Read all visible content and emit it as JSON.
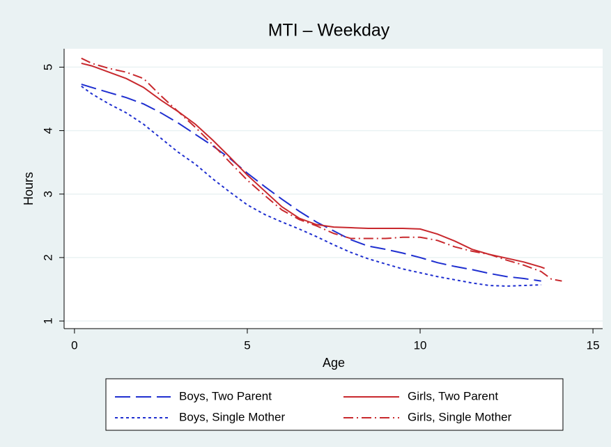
{
  "chart_data": {
    "type": "line",
    "title": "MTI – Weekday",
    "xlabel": "Age",
    "ylabel": "Hours",
    "xlim": [
      -0.3,
      15.28
    ],
    "ylim": [
      0.88,
      5.29
    ],
    "xticks": [
      0,
      5,
      10,
      15
    ],
    "yticks": [
      1,
      2,
      3,
      4,
      5
    ],
    "grid": true,
    "series": [
      {
        "name": "Boys, Two Parent",
        "color": "#1f2fd0",
        "dash": "long",
        "x": [
          0.2,
          0.5,
          1,
          1.5,
          2,
          2.5,
          3,
          3.5,
          4,
          4.5,
          5,
          5.5,
          6,
          6.5,
          7,
          7.5,
          8,
          8.5,
          9,
          9.5,
          10,
          10.5,
          11,
          11.5,
          12,
          12.5,
          13,
          13.5
        ],
        "values": [
          4.73,
          4.68,
          4.6,
          4.52,
          4.42,
          4.28,
          4.12,
          3.94,
          3.76,
          3.56,
          3.33,
          3.12,
          2.92,
          2.73,
          2.56,
          2.42,
          2.28,
          2.18,
          2.13,
          2.07,
          2.0,
          1.92,
          1.86,
          1.81,
          1.75,
          1.7,
          1.67,
          1.63
        ]
      },
      {
        "name": "Boys, Single Mother",
        "color": "#1f2fd0",
        "dash": "short",
        "x": [
          0.2,
          0.5,
          1,
          1.5,
          2,
          2.5,
          3,
          3.5,
          4,
          4.5,
          5,
          5.5,
          6,
          6.5,
          7,
          7.5,
          8,
          8.5,
          9,
          9.5,
          10,
          10.5,
          11,
          11.5,
          12,
          12.5,
          13,
          13.5
        ],
        "values": [
          4.7,
          4.58,
          4.42,
          4.28,
          4.1,
          3.88,
          3.66,
          3.47,
          3.24,
          3.03,
          2.83,
          2.68,
          2.56,
          2.45,
          2.33,
          2.2,
          2.08,
          1.98,
          1.9,
          1.82,
          1.76,
          1.7,
          1.65,
          1.6,
          1.56,
          1.55,
          1.56,
          1.57
        ]
      },
      {
        "name": "Girls, Two Parent",
        "color": "#c8282d",
        "dash": "solid",
        "x": [
          0.2,
          0.5,
          1,
          1.5,
          2,
          2.5,
          3,
          3.5,
          4,
          4.5,
          5,
          5.5,
          6,
          6.5,
          7,
          7.5,
          8,
          8.5,
          9,
          9.5,
          10,
          10.5,
          11,
          11.5,
          12,
          12.5,
          13,
          13.5,
          13.6
        ],
        "values": [
          5.06,
          5.02,
          4.92,
          4.82,
          4.68,
          4.48,
          4.3,
          4.1,
          3.85,
          3.58,
          3.3,
          3.05,
          2.8,
          2.62,
          2.52,
          2.48,
          2.47,
          2.46,
          2.46,
          2.46,
          2.45,
          2.37,
          2.26,
          2.13,
          2.05,
          1.99,
          1.93,
          1.85,
          1.83
        ]
      },
      {
        "name": "Girls, Single Mother",
        "color": "#c8282d",
        "dash": "dashdot",
        "x": [
          0.2,
          0.5,
          1,
          1.5,
          2,
          2.5,
          3,
          3.5,
          4,
          4.5,
          5,
          5.5,
          6,
          6.5,
          7,
          7.5,
          8,
          8.5,
          9,
          9.5,
          10,
          10.5,
          11,
          11.5,
          12,
          12.5,
          13,
          13.5,
          13.8,
          14.1
        ],
        "values": [
          5.14,
          5.06,
          4.98,
          4.92,
          4.82,
          4.55,
          4.3,
          4.05,
          3.78,
          3.5,
          3.22,
          2.98,
          2.75,
          2.6,
          2.5,
          2.38,
          2.3,
          2.3,
          2.3,
          2.32,
          2.32,
          2.27,
          2.17,
          2.1,
          2.05,
          1.96,
          1.88,
          1.78,
          1.66,
          1.63
        ]
      }
    ]
  }
}
